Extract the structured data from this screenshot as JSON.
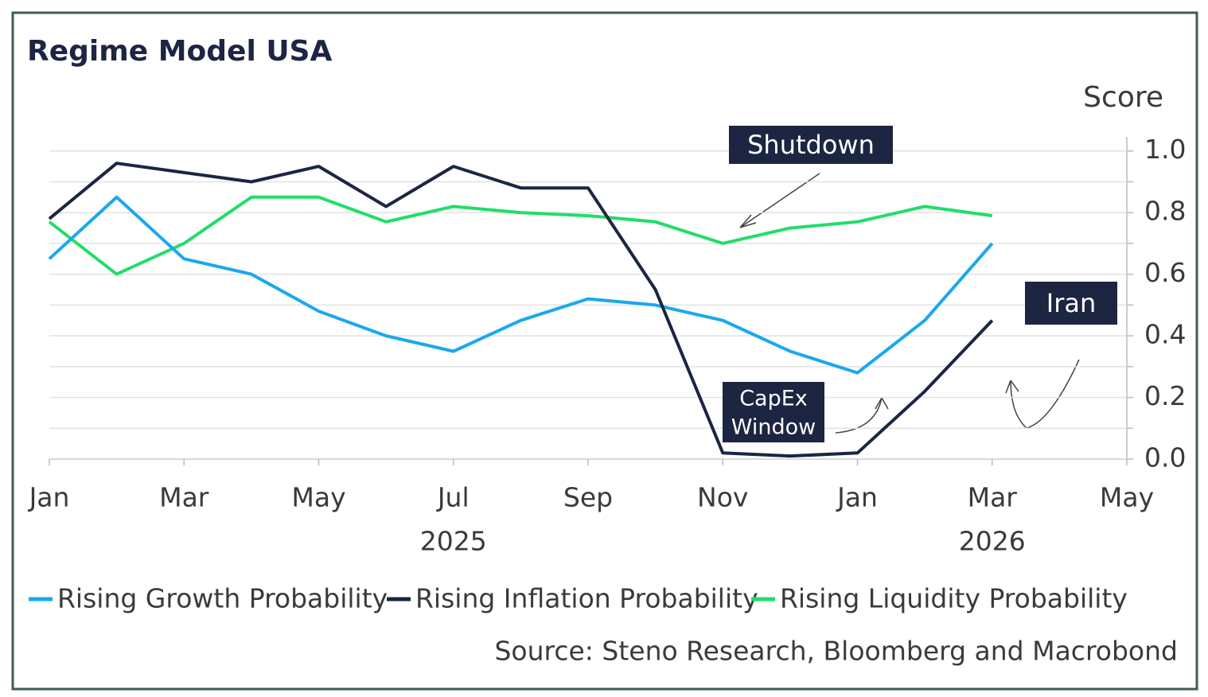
{
  "chart_data": {
    "type": "line",
    "title": "Regime Model USA",
    "y_label": "Score",
    "source": "Source: Steno Research, Bloomberg and Macrobond",
    "x": [
      "2025-01",
      "2025-02",
      "2025-03",
      "2025-04",
      "2025-05",
      "2025-06",
      "2025-07",
      "2025-08",
      "2025-09",
      "2025-10",
      "2025-11",
      "2025-12",
      "2026-01",
      "2026-02",
      "2026-03"
    ],
    "series": [
      {
        "name": "Rising Growth Probability",
        "color": "#1aa8ee",
        "values": [
          0.65,
          0.85,
          0.65,
          0.6,
          0.48,
          0.4,
          0.35,
          0.45,
          0.52,
          0.5,
          0.45,
          0.35,
          0.28,
          0.45,
          0.7
        ]
      },
      {
        "name": "Rising Inflation Probability",
        "color": "#1c2541",
        "values": [
          0.78,
          0.96,
          0.93,
          0.9,
          0.95,
          0.82,
          0.95,
          0.88,
          0.88,
          0.55,
          0.02,
          0.01,
          0.02,
          0.22,
          0.45
        ]
      },
      {
        "name": "Rising Liquidity Probability",
        "color": "#22dd6a",
        "values": [
          0.77,
          0.6,
          0.7,
          0.85,
          0.85,
          0.77,
          0.82,
          0.8,
          0.79,
          0.77,
          0.7,
          0.75,
          0.77,
          0.82,
          0.79
        ]
      }
    ],
    "xlim": [
      "2025-01",
      "2026-05"
    ],
    "xticks": [
      {
        "value": "2025-01",
        "label": "Jan"
      },
      {
        "value": "2025-03",
        "label": "Mar"
      },
      {
        "value": "2025-05",
        "label": "May"
      },
      {
        "value": "2025-07",
        "label": "Jul"
      },
      {
        "value": "2025-09",
        "label": "Sep"
      },
      {
        "value": "2025-11",
        "label": "Nov"
      },
      {
        "value": "2026-01",
        "label": "Jan"
      },
      {
        "value": "2026-03",
        "label": "Mar"
      },
      {
        "value": "2026-05",
        "label": "May"
      }
    ],
    "year_labels": [
      {
        "value": "2025-07",
        "label": "2025"
      },
      {
        "value": "2026-03",
        "label": "2026"
      }
    ],
    "ylim": [
      0,
      1.02
    ],
    "yticks": [
      {
        "value": 0,
        "label": "0.0"
      },
      0.2,
      0.4,
      0.6,
      0.8,
      {
        "value": 1,
        "label": "1.0"
      }
    ],
    "yminor_ticks": [
      0.1,
      0.3,
      0.5,
      0.7,
      0.9
    ],
    "grid": true,
    "legend": "bottom",
    "annotations": [
      {
        "text": "Shutdown"
      },
      {
        "text": "CapEx\nWindow",
        "lines": [
          "CapEx",
          "Window"
        ]
      },
      {
        "text": "Iran"
      }
    ]
  }
}
